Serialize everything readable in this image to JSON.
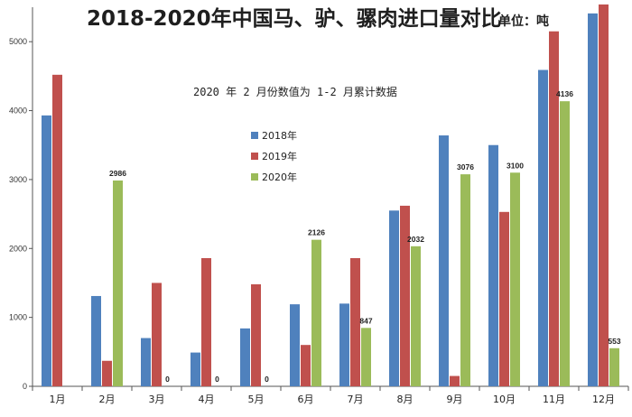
{
  "title": "2018-2020年中国马、驴、骡肉进口量对比",
  "unit_label": "单位：吨",
  "note": "2020 年 2 月份数值为 1-2 月累计数据",
  "chart_data": {
    "type": "bar",
    "title": "2018-2020年中国马、驴、骡肉进口量对比",
    "subtitle": "2020 年 2 月份数值为 1-2 月累计数据",
    "unit": "单位：吨",
    "xlabel": "",
    "ylabel": "",
    "ylim": [
      0,
      5500
    ],
    "yticks": [
      0,
      1000,
      2000,
      3000,
      4000,
      5000
    ],
    "categories": [
      "1月",
      "2月",
      "3月",
      "4月",
      "5月",
      "6月",
      "7月",
      "8月",
      "9月",
      "10月",
      "11月",
      "12月"
    ],
    "series": [
      {
        "name": "2018年",
        "color": "#4f81bd",
        "values": [
          3930,
          1310,
          700,
          490,
          840,
          1190,
          1200,
          2550,
          3640,
          3500,
          4590,
          5410
        ]
      },
      {
        "name": "2019年",
        "color": "#c0504d",
        "values": [
          4520,
          370,
          1500,
          1860,
          1480,
          600,
          1860,
          2620,
          150,
          2530,
          5150,
          5540
        ]
      },
      {
        "name": "2020年",
        "color": "#9bbb59",
        "values": [
          null,
          2986,
          0,
          0,
          0,
          2126,
          847,
          2032,
          3076,
          3100,
          4136,
          553
        ]
      }
    ],
    "data_labels": {
      "series": "2020年",
      "values": [
        null,
        "2986",
        "0",
        "0",
        "0",
        "2126",
        "847",
        "2032",
        "3076",
        "3100",
        "4136",
        "553"
      ]
    },
    "legend_position": "center",
    "grid": false
  }
}
